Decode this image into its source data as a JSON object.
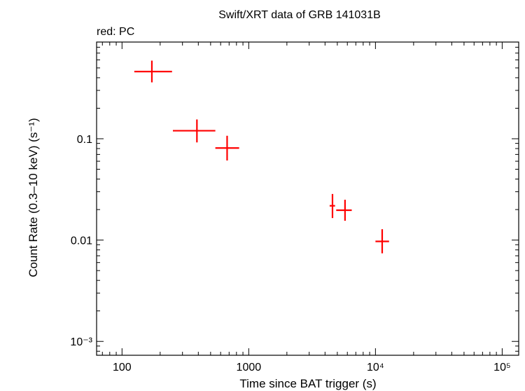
{
  "chart_data": {
    "type": "scatter",
    "title": "Swift/XRT data of GRB 141031B",
    "subtitle": "red: PC",
    "xlabel": "Time since BAT trigger (s)",
    "ylabel": "Count Rate (0.3–10 keV) (s⁻¹)",
    "xscale": "log",
    "yscale": "log",
    "xlim": [
      63,
      135000
    ],
    "ylim": [
      0.00073,
      0.9
    ],
    "grid": false,
    "x_ticks": [
      {
        "value": 100,
        "label": "100"
      },
      {
        "value": 1000,
        "label": "1000"
      },
      {
        "value": 10000,
        "label": "10⁴"
      },
      {
        "value": 100000,
        "label": "10⁵"
      }
    ],
    "y_ticks": [
      {
        "value": 0.1,
        "label": "0.1"
      },
      {
        "value": 0.01,
        "label": "0.01"
      },
      {
        "value": 0.001,
        "label": "10⁻³"
      }
    ],
    "series": [
      {
        "name": "PC",
        "color": "#ff0000",
        "points": [
          {
            "x": 172,
            "y": 0.46,
            "xmin": 125,
            "xmax": 248,
            "ymin": 0.36,
            "ymax": 0.59
          },
          {
            "x": 390,
            "y": 0.12,
            "xmin": 252,
            "xmax": 545,
            "ymin": 0.092,
            "ymax": 0.155
          },
          {
            "x": 675,
            "y": 0.081,
            "xmin": 545,
            "xmax": 840,
            "ymin": 0.061,
            "ymax": 0.107
          },
          {
            "x": 4580,
            "y": 0.0218,
            "xmin": 4350,
            "xmax": 4800,
            "ymin": 0.0165,
            "ymax": 0.0285
          },
          {
            "x": 5750,
            "y": 0.0197,
            "xmin": 4900,
            "xmax": 6500,
            "ymin": 0.0155,
            "ymax": 0.025
          },
          {
            "x": 11300,
            "y": 0.0097,
            "xmin": 10000,
            "xmax": 12800,
            "ymin": 0.0074,
            "ymax": 0.0128
          }
        ]
      }
    ]
  }
}
